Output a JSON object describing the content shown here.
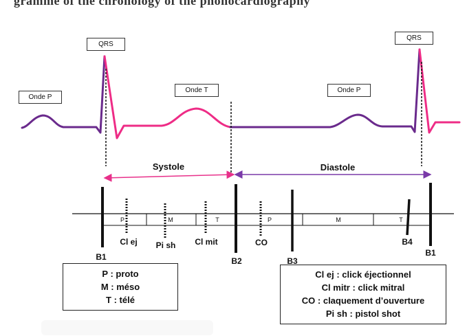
{
  "top_title_fragment": "gramme of the chronology of the phonocardiography",
  "ecg_labels": {
    "onde_p_1": "Onde P",
    "qrs_1": "QRS",
    "onde_t": "Onde T",
    "onde_p_2": "Onde P",
    "qrs_2": "QRS"
  },
  "phases": {
    "systole": "Systole",
    "diastole": "Diastole"
  },
  "subdivisions": {
    "systole": [
      "P",
      "M",
      "T"
    ],
    "diastole": [
      "P",
      "M",
      "T"
    ]
  },
  "events": {
    "b1_left": "B1",
    "b2": "B2",
    "b3": "B3",
    "b4": "B4",
    "b1_right": "B1",
    "cl_ej": "Cl ej",
    "pi_sh": "Pi sh",
    "cl_mit": "Cl mit",
    "co": "CO"
  },
  "legend_left": [
    "P : proto",
    "M : méso",
    "T : télé"
  ],
  "legend_right": [
    "Cl ej : click éjectionnel",
    "Cl mitr : click mitral",
    "CO : claquement d’ouverture",
    "Pi sh : pistol shot"
  ],
  "colors": {
    "wave_purple": "#6a2a8c",
    "wave_pink": "#ee2c86",
    "systole_arrow": "#e8308a",
    "diastole_arrow": "#7a3aa8",
    "line": "#111111"
  }
}
